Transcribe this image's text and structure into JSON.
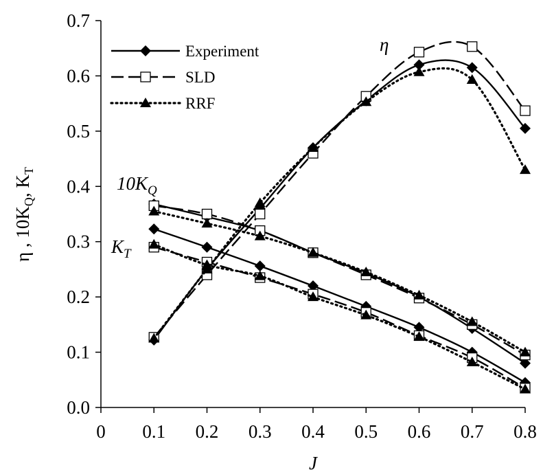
{
  "chart_data": {
    "type": "line",
    "x_label": "J",
    "y_label": {
      "parts": [
        "η , 10K",
        "Q",
        ", K",
        "T"
      ]
    },
    "x": [
      0.1,
      0.2,
      0.3,
      0.4,
      0.5,
      0.6,
      0.7,
      0.8
    ],
    "xlim": [
      0,
      0.8
    ],
    "xticks": [
      0,
      0.1,
      0.2,
      0.3,
      0.4,
      0.5,
      0.6,
      0.7,
      0.8
    ],
    "ylim": [
      0,
      0.7
    ],
    "yticks": [
      {
        "value": 0,
        "label": "0.0"
      },
      0.1,
      0.2,
      0.3,
      0.4,
      0.5,
      0.6,
      0.7
    ],
    "legend": "upper left",
    "curves": [
      {
        "text": "η"
      },
      {
        "text": "10K",
        "sub": "Q"
      },
      {
        "text": "K",
        "sub": "T"
      }
    ],
    "series": [
      {
        "name": "Experiment",
        "color": "#000000",
        "dash": "solid",
        "marker": "diamond",
        "values": [
          [
            0.122,
            0.25,
            0.36,
            0.47,
            0.555,
            0.62,
            0.615,
            0.505
          ],
          [
            0.368,
            0.345,
            0.32,
            0.28,
            0.243,
            0.2,
            0.143,
            0.08
          ],
          [
            0.323,
            0.29,
            0.256,
            0.22,
            0.183,
            0.145,
            0.1,
            0.045
          ]
        ]
      },
      {
        "name": "SLD",
        "color": "#000000",
        "dash": "dashed",
        "marker": "square",
        "values": [
          [
            0.127,
            0.24,
            0.35,
            0.46,
            0.563,
            0.643,
            0.653,
            0.537
          ],
          [
            0.365,
            0.35,
            0.32,
            0.28,
            0.24,
            0.198,
            0.15,
            0.095
          ],
          [
            0.29,
            0.263,
            0.235,
            0.205,
            0.172,
            0.13,
            0.09,
            0.035
          ]
        ]
      },
      {
        "name": "RRF",
        "color": "#000000",
        "dash": "dotted",
        "marker": "triangle",
        "values": [
          [
            0.125,
            0.25,
            0.37,
            0.47,
            0.553,
            0.607,
            0.593,
            0.43
          ],
          [
            0.355,
            0.333,
            0.31,
            0.28,
            0.245,
            0.203,
            0.155,
            0.1
          ],
          [
            0.295,
            0.258,
            0.238,
            0.2,
            0.167,
            0.128,
            0.082,
            0.033
          ]
        ]
      }
    ]
  }
}
